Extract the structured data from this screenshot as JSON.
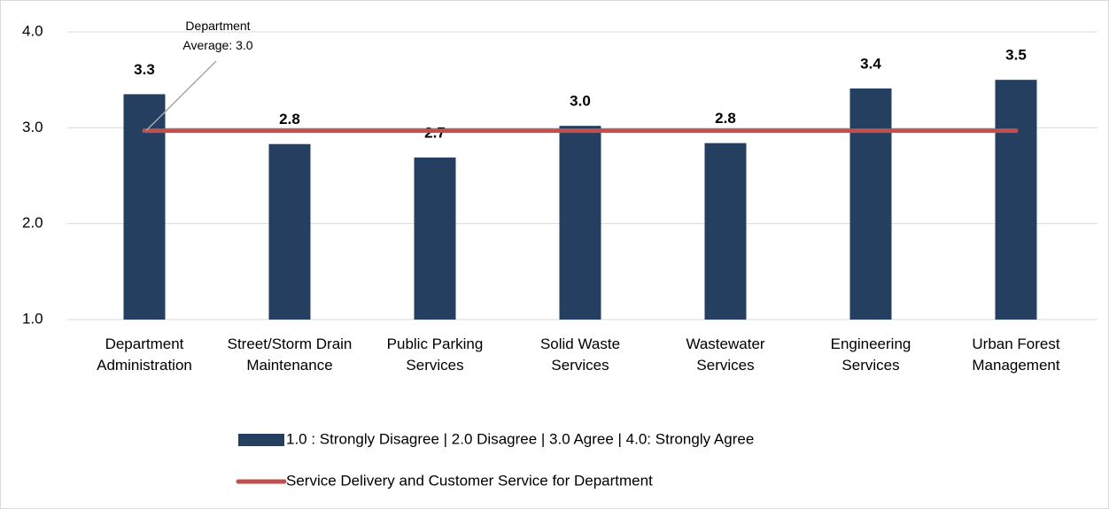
{
  "chart_data": {
    "type": "bar",
    "categories": [
      "Department Administration",
      "Street/Storm Drain Maintenance",
      "Public Parking Services",
      "Solid Waste Services",
      "Wastewater Services",
      "Engineering Services",
      "Urban Forest Management"
    ],
    "series": [
      {
        "name": "1.0 : Strongly Disagree | 2.0 Disagree | 3.0 Agree | 4.0: Strongly Agree",
        "color": "#243f60",
        "type": "bar",
        "values": [
          3.35,
          2.83,
          2.69,
          3.02,
          2.84,
          3.41,
          3.5
        ],
        "value_labels": [
          "3.3",
          "2.8",
          "2.7",
          "3.0",
          "2.8",
          "3.4",
          "3.5"
        ]
      },
      {
        "name": "Service Delivery and Customer Service for Department",
        "color": "#c0504d",
        "type": "line",
        "values": [
          2.97,
          2.97,
          2.97,
          2.97,
          2.97,
          2.97,
          2.97
        ]
      }
    ],
    "annotation": "Department Average: 3.0",
    "ylim": [
      1.0,
      4.0
    ],
    "yticks": [
      {
        "value": 1,
        "label": "1.0"
      },
      {
        "value": 2,
        "label": "2.0"
      },
      {
        "value": 3,
        "label": "3.0"
      },
      {
        "value": 4,
        "label": "4.0"
      }
    ],
    "grid": true
  }
}
